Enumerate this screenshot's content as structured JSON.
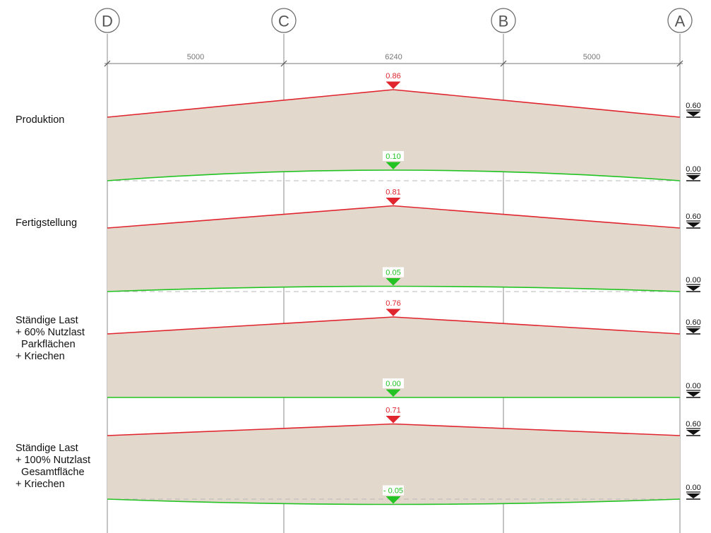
{
  "axes": [
    "D",
    "C",
    "B",
    "A"
  ],
  "spans": [
    "5000",
    "6240",
    "5000"
  ],
  "colors": {
    "fill": "#e3d8cc",
    "top": "#e0252f",
    "bottom": "#22c322",
    "grid": "#8a8a8a",
    "dash": "#b8b8b8",
    "ref": "#111111"
  },
  "ref_labels": {
    "top": "0.60",
    "bottom": "0.00"
  },
  "cases": [
    {
      "label_lines": [
        "Produktion"
      ],
      "peak_top": "0.86",
      "peak_bottom": "0.10"
    },
    {
      "label_lines": [
        "Fertigstellung"
      ],
      "peak_top": "0.81",
      "peak_bottom": "0.05"
    },
    {
      "label_lines": [
        "Ständige Last",
        "+ 60% Nutzlast",
        "  Parkflächen",
        "+ Kriechen"
      ],
      "peak_top": "0.76",
      "peak_bottom": "0.00"
    },
    {
      "label_lines": [
        "Ständige Last",
        "+ 100% Nutzlast",
        "  Gesamtfläche",
        "+ Kriechen"
      ],
      "peak_top": "0.71",
      "peak_bottom": "- 0.05"
    }
  ]
}
